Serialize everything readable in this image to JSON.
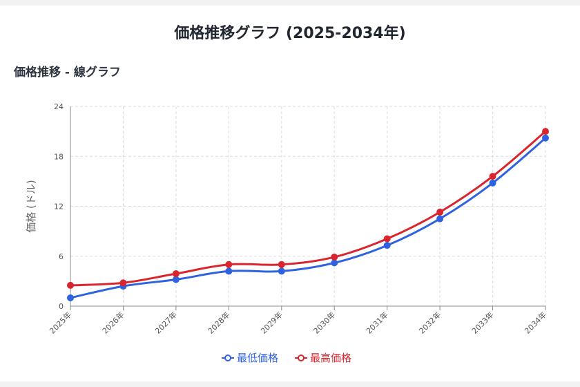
{
  "page": {
    "title": "価格推移グラフ (2025-2034年)",
    "section_title": "価格推移 - 線グラフ"
  },
  "chart_data": {
    "type": "line",
    "categories": [
      "2025年",
      "2026年",
      "2027年",
      "2028年",
      "2029年",
      "2030年",
      "2031年",
      "2032年",
      "2033年",
      "2034年"
    ],
    "ylabel": "価格 (ドル)",
    "xlabel": "",
    "ylim": [
      0,
      24
    ],
    "yticks": [
      0,
      6,
      12,
      18,
      24
    ],
    "grid": true,
    "legend": "bottom-center",
    "series": [
      {
        "name": "最低価格",
        "color": "#2f62e0",
        "values": [
          1.0,
          2.4,
          3.2,
          4.2,
          4.2,
          5.2,
          7.3,
          10.5,
          14.8,
          20.2
        ]
      },
      {
        "name": "最高価格",
        "color": "#d9262e",
        "values": [
          2.5,
          2.8,
          3.9,
          5.0,
          5.0,
          5.9,
          8.1,
          11.3,
          15.6,
          21.0
        ]
      }
    ]
  }
}
